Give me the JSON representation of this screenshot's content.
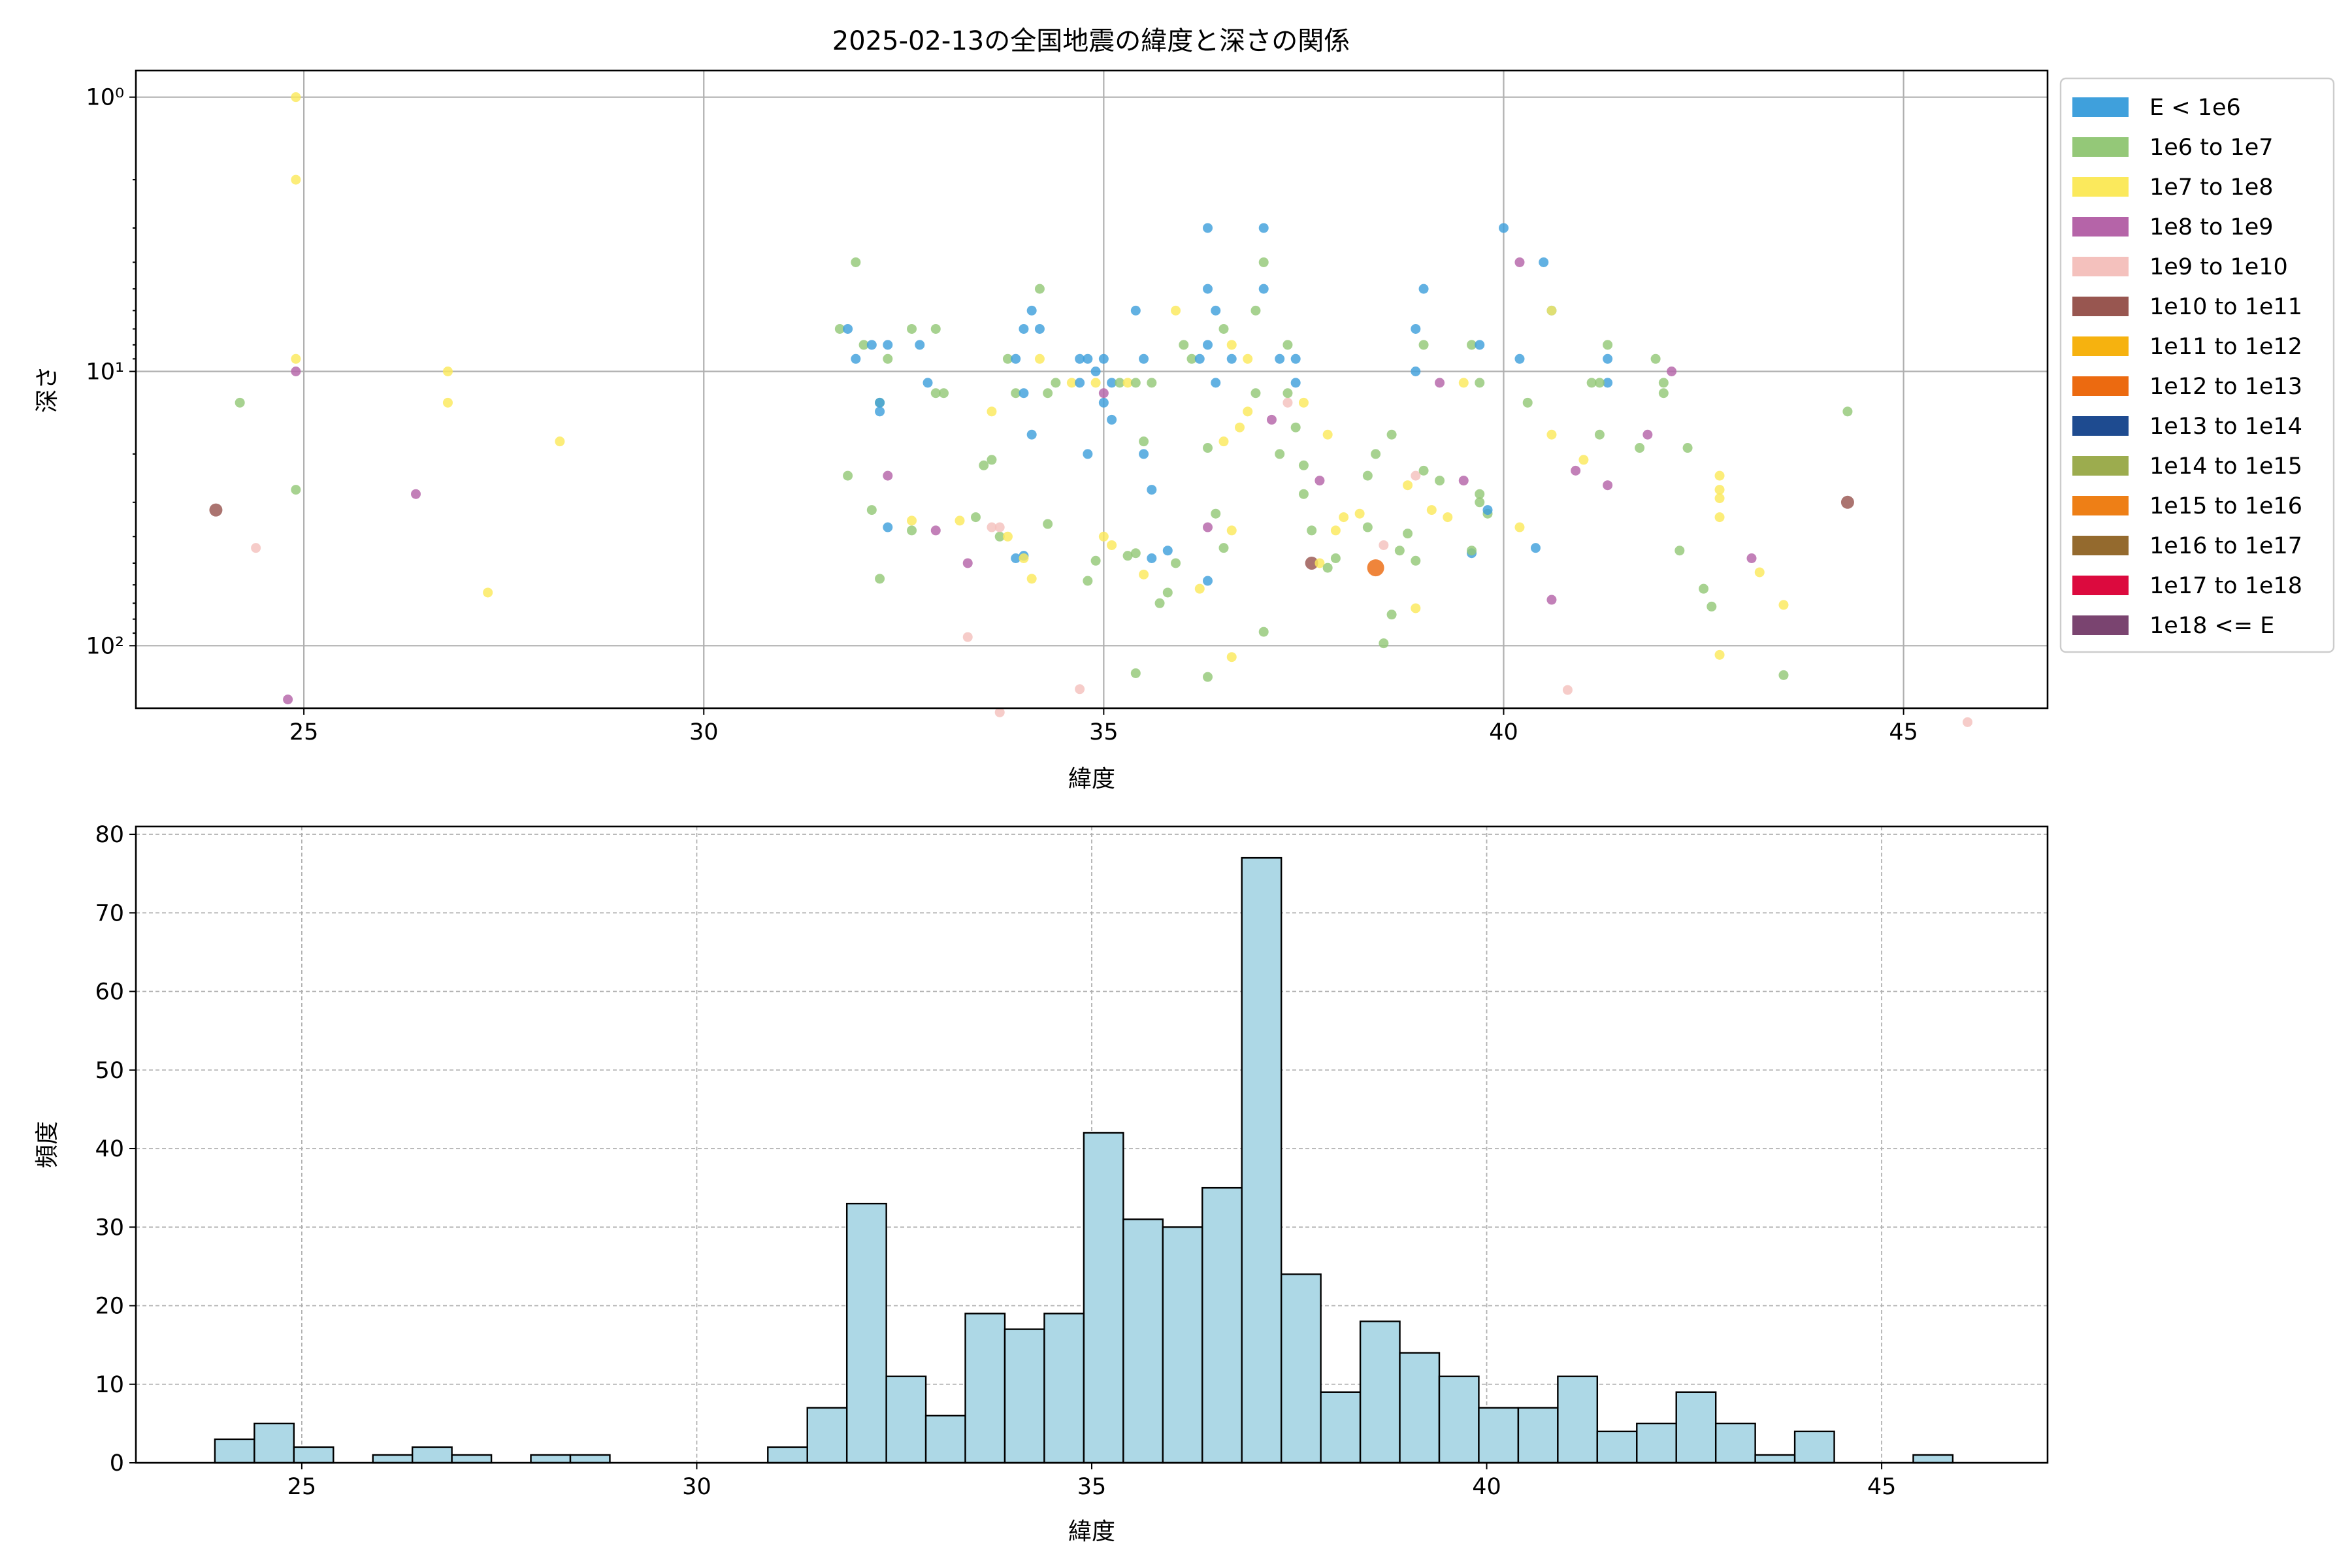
{
  "title": "2025-02-13の全国地震の緯度と深さの関係",
  "chart_data": [
    {
      "type": "scatter",
      "xlabel": "緯度",
      "ylabel": "深さ",
      "xlim": [
        22.9,
        46.8
      ],
      "ylim": [
        0.8,
        169
      ],
      "y_inverted": true,
      "y_scale": "log",
      "x_ticks": [
        25,
        30,
        35,
        40,
        45
      ],
      "y_ticks": [
        {
          "value": 1,
          "label": "10⁰"
        },
        {
          "value": 10,
          "label": "10¹"
        },
        {
          "value": 100,
          "label": "10²"
        }
      ],
      "grid": true,
      "legend_position": "right",
      "legend": [
        {
          "label": "E < 1e6",
          "color": "#3fa0dc"
        },
        {
          "label": "1e6 to 1e7",
          "color": "#94c878"
        },
        {
          "label": "1e7 to 1e8",
          "color": "#fbe95c"
        },
        {
          "label": "1e8 to 1e9",
          "color": "#b564a8"
        },
        {
          "label": "1e9 to 1e10",
          "color": "#f4c1bd"
        },
        {
          "label": "1e10 to 1e11",
          "color": "#985650"
        },
        {
          "label": "1e11 to 1e12",
          "color": "#f6b20f"
        },
        {
          "label": "1e12 to 1e13",
          "color": "#ec6a10"
        },
        {
          "label": "1e13 to 1e14",
          "color": "#1e4b90"
        },
        {
          "label": "1e14 to 1e15",
          "color": "#9cac4e"
        },
        {
          "label": "1e15 to 1e16",
          "color": "#ee7f16"
        },
        {
          "label": "1e16 to 1e17",
          "color": "#946a2e"
        },
        {
          "label": "1e17 to 1e18",
          "color": "#dc0a3e"
        },
        {
          "label": "1e18 <= E",
          "color": "#7a4470"
        }
      ],
      "points": [
        [
          24.2,
          13,
          1
        ],
        [
          24.9,
          1,
          2
        ],
        [
          24.9,
          2,
          2
        ],
        [
          24.9,
          9,
          2
        ],
        [
          24.9,
          10,
          3
        ],
        [
          24.9,
          27,
          1
        ],
        [
          23.9,
          32,
          5
        ],
        [
          24.4,
          44,
          4
        ],
        [
          24.8,
          157,
          3
        ],
        [
          26.8,
          10,
          2
        ],
        [
          26.8,
          13,
          2
        ],
        [
          26.4,
          28,
          3
        ],
        [
          27.3,
          64,
          2
        ],
        [
          28.2,
          18,
          2
        ],
        [
          31.7,
          7,
          1
        ],
        [
          31.8,
          7,
          0
        ],
        [
          31.9,
          4,
          1
        ],
        [
          31.9,
          9,
          0
        ],
        [
          32.0,
          8,
          1
        ],
        [
          32.1,
          8,
          0
        ],
        [
          32.2,
          13,
          1
        ],
        [
          32.2,
          13,
          0
        ],
        [
          32.2,
          14,
          0
        ],
        [
          32.1,
          32,
          1
        ],
        [
          31.8,
          24,
          1
        ],
        [
          32.3,
          24,
          3
        ],
        [
          32.2,
          57,
          1
        ],
        [
          32.3,
          37,
          0
        ],
        [
          32.3,
          8,
          0
        ],
        [
          32.3,
          9,
          1
        ],
        [
          32.6,
          7,
          1
        ],
        [
          32.7,
          8,
          0
        ],
        [
          32.6,
          38,
          1
        ],
        [
          32.6,
          35,
          2
        ],
        [
          32.8,
          11,
          0
        ],
        [
          32.9,
          7,
          1
        ],
        [
          32.9,
          12,
          1
        ],
        [
          32.9,
          38,
          3
        ],
        [
          33.0,
          12,
          1
        ],
        [
          33.2,
          35,
          2
        ],
        [
          33.3,
          50,
          3
        ],
        [
          33.4,
          34,
          1
        ],
        [
          33.5,
          22,
          1
        ],
        [
          33.6,
          14,
          2
        ],
        [
          33.6,
          37,
          4
        ],
        [
          33.7,
          40,
          1
        ],
        [
          33.3,
          93,
          4
        ],
        [
          33.6,
          21,
          1
        ],
        [
          33.8,
          9,
          1
        ],
        [
          33.9,
          12,
          1
        ],
        [
          33.9,
          9,
          0
        ],
        [
          34.0,
          7,
          0
        ],
        [
          34.0,
          12,
          0
        ],
        [
          34.1,
          6,
          0
        ],
        [
          34.1,
          17,
          0
        ],
        [
          34.2,
          9,
          2
        ],
        [
          34.2,
          7,
          0
        ],
        [
          34.3,
          12,
          1
        ],
        [
          34.4,
          11,
          1
        ],
        [
          34.0,
          47,
          0
        ],
        [
          33.9,
          48,
          0
        ],
        [
          34.1,
          57,
          2
        ],
        [
          34.3,
          36,
          1
        ],
        [
          34.2,
          5,
          1
        ],
        [
          33.7,
          37,
          4
        ],
        [
          33.8,
          40,
          2
        ],
        [
          34.0,
          48,
          2
        ],
        [
          33.7,
          175,
          4
        ],
        [
          34.6,
          11,
          2
        ],
        [
          34.7,
          9,
          0
        ],
        [
          34.7,
          11,
          0
        ],
        [
          34.8,
          20,
          0
        ],
        [
          34.8,
          9,
          0
        ],
        [
          34.9,
          10,
          0
        ],
        [
          34.9,
          11,
          2
        ],
        [
          35.0,
          13,
          0
        ],
        [
          35.0,
          9,
          0
        ],
        [
          35.1,
          15,
          0
        ],
        [
          35.1,
          11,
          0
        ],
        [
          34.8,
          58,
          1
        ],
        [
          34.9,
          49,
          1
        ],
        [
          35.0,
          40,
          2
        ],
        [
          35.1,
          43,
          2
        ],
        [
          34.7,
          144,
          4
        ],
        [
          35.0,
          12,
          3
        ],
        [
          35.2,
          11,
          1
        ],
        [
          35.3,
          11,
          2
        ],
        [
          35.4,
          6,
          0
        ],
        [
          35.4,
          11,
          1
        ],
        [
          35.5,
          9,
          0
        ],
        [
          35.5,
          20,
          0
        ],
        [
          35.6,
          11,
          1
        ],
        [
          35.6,
          27,
          0
        ],
        [
          35.5,
          18,
          1
        ],
        [
          35.4,
          46,
          1
        ],
        [
          35.3,
          47,
          1
        ],
        [
          35.5,
          55,
          2
        ],
        [
          35.6,
          48,
          0
        ],
        [
          35.7,
          70,
          1
        ],
        [
          35.8,
          64,
          1
        ],
        [
          35.9,
          50,
          1
        ],
        [
          35.4,
          126,
          1
        ],
        [
          35.8,
          45,
          0
        ],
        [
          35.9,
          6,
          2
        ],
        [
          36.0,
          8,
          1
        ],
        [
          36.1,
          9,
          1
        ],
        [
          36.2,
          9,
          0
        ],
        [
          36.3,
          8,
          0
        ],
        [
          36.4,
          6,
          0
        ],
        [
          36.3,
          5,
          0
        ],
        [
          36.5,
          7,
          1
        ],
        [
          36.4,
          11,
          0
        ],
        [
          36.6,
          9,
          0
        ],
        [
          36.6,
          8,
          2
        ],
        [
          36.8,
          9,
          2
        ],
        [
          36.9,
          12,
          1
        ],
        [
          37.0,
          5,
          0
        ],
        [
          36.3,
          3,
          0
        ],
        [
          37.0,
          3,
          0
        ],
        [
          37.0,
          4,
          1
        ],
        [
          36.9,
          6,
          1
        ],
        [
          36.3,
          19,
          1
        ],
        [
          36.5,
          18,
          2
        ],
        [
          36.4,
          33,
          1
        ],
        [
          36.3,
          37,
          3
        ],
        [
          36.7,
          16,
          2
        ],
        [
          36.8,
          14,
          2
        ],
        [
          36.3,
          58,
          0
        ],
        [
          36.2,
          62,
          2
        ],
        [
          36.5,
          44,
          1
        ],
        [
          36.6,
          38,
          2
        ],
        [
          36.3,
          130,
          1
        ],
        [
          36.6,
          110,
          2
        ],
        [
          37.0,
          89,
          1
        ],
        [
          37.2,
          20,
          1
        ],
        [
          37.1,
          15,
          3
        ],
        [
          37.2,
          9,
          0
        ],
        [
          37.3,
          8,
          1
        ],
        [
          37.4,
          9,
          0
        ],
        [
          37.3,
          12,
          1
        ],
        [
          37.5,
          13,
          2
        ],
        [
          37.4,
          11,
          0
        ],
        [
          37.3,
          13,
          4
        ],
        [
          37.4,
          16,
          1
        ],
        [
          37.5,
          22,
          1
        ],
        [
          37.5,
          28,
          1
        ],
        [
          37.6,
          38,
          1
        ],
        [
          37.6,
          50,
          5
        ],
        [
          37.7,
          50,
          2
        ],
        [
          37.9,
          38,
          2
        ],
        [
          37.8,
          52,
          1
        ],
        [
          37.9,
          48,
          1
        ],
        [
          37.7,
          25,
          3
        ],
        [
          37.8,
          17,
          2
        ],
        [
          38.0,
          34,
          2
        ],
        [
          38.2,
          33,
          2
        ],
        [
          38.3,
          37,
          1
        ],
        [
          38.4,
          52,
          7
        ],
        [
          38.5,
          43,
          4
        ],
        [
          38.6,
          77,
          1
        ],
        [
          38.7,
          45,
          1
        ],
        [
          38.5,
          98,
          1
        ],
        [
          38.4,
          20,
          1
        ],
        [
          38.3,
          24,
          1
        ],
        [
          38.6,
          17,
          1
        ],
        [
          38.8,
          39,
          1
        ],
        [
          38.9,
          49,
          1
        ],
        [
          38.9,
          73,
          2
        ],
        [
          38.9,
          10,
          0
        ],
        [
          38.9,
          7,
          0
        ],
        [
          39.0,
          5,
          0
        ],
        [
          39.0,
          8,
          1
        ],
        [
          39.2,
          11,
          3
        ],
        [
          38.9,
          24,
          4
        ],
        [
          38.8,
          26,
          2
        ],
        [
          39.0,
          23,
          1
        ],
        [
          39.1,
          32,
          2
        ],
        [
          39.2,
          25,
          1
        ],
        [
          39.3,
          34,
          2
        ],
        [
          39.5,
          25,
          3
        ],
        [
          39.6,
          8,
          1
        ],
        [
          39.7,
          8,
          0
        ],
        [
          39.7,
          11,
          1
        ],
        [
          39.7,
          28,
          1
        ],
        [
          39.8,
          33,
          1
        ],
        [
          39.6,
          46,
          0
        ],
        [
          39.8,
          32,
          0
        ],
        [
          39.5,
          11,
          2
        ],
        [
          39.7,
          30,
          1
        ],
        [
          39.6,
          45,
          1
        ],
        [
          40.0,
          3,
          0
        ],
        [
          40.2,
          4,
          3
        ],
        [
          40.2,
          9,
          0
        ],
        [
          40.3,
          13,
          1
        ],
        [
          40.2,
          37,
          2
        ],
        [
          40.4,
          44,
          0
        ],
        [
          40.5,
          4,
          0
        ],
        [
          40.6,
          6,
          0
        ],
        [
          40.6,
          6,
          2
        ],
        [
          40.6,
          17,
          2
        ],
        [
          40.6,
          68,
          3
        ],
        [
          40.9,
          23,
          3
        ],
        [
          41.0,
          21,
          2
        ],
        [
          40.8,
          145,
          4
        ],
        [
          41.1,
          11,
          1
        ],
        [
          41.2,
          17,
          1
        ],
        [
          41.3,
          8,
          1
        ],
        [
          41.3,
          9,
          0
        ],
        [
          41.3,
          11,
          0
        ],
        [
          41.3,
          26,
          3
        ],
        [
          41.2,
          11,
          1
        ],
        [
          41.7,
          19,
          1
        ],
        [
          41.9,
          9,
          1
        ],
        [
          42.0,
          11,
          1
        ],
        [
          42.0,
          12,
          1
        ],
        [
          42.1,
          10,
          3
        ],
        [
          41.8,
          17,
          3
        ],
        [
          42.2,
          45,
          1
        ],
        [
          42.3,
          19,
          1
        ],
        [
          42.5,
          62,
          1
        ],
        [
          42.6,
          72,
          1
        ],
        [
          42.7,
          24,
          2
        ],
        [
          42.7,
          29,
          2
        ],
        [
          42.7,
          34,
          2
        ],
        [
          42.7,
          27,
          2
        ],
        [
          42.7,
          108,
          2
        ],
        [
          43.1,
          48,
          3
        ],
        [
          43.2,
          54,
          2
        ],
        [
          43.5,
          71,
          2
        ],
        [
          43.5,
          128,
          1
        ],
        [
          44.3,
          30,
          5
        ],
        [
          44.3,
          14,
          1
        ],
        [
          45.8,
          190,
          4
        ]
      ]
    },
    {
      "type": "bar",
      "xlabel": "緯度",
      "ylabel": "頻度",
      "xlim": [
        22.9,
        47.1
      ],
      "ylim": [
        0,
        81
      ],
      "x_ticks": [
        25,
        30,
        35,
        40,
        45
      ],
      "y_ticks": [
        0,
        10,
        20,
        30,
        40,
        50,
        60,
        70,
        80
      ],
      "grid": true,
      "bar_color": "#add8e6",
      "bin_start": 23.9,
      "bin_width": 0.5,
      "values": [
        3,
        5,
        2,
        0,
        1,
        2,
        1,
        0,
        1,
        1,
        0,
        0,
        0,
        0,
        2,
        7,
        33,
        11,
        6,
        19,
        17,
        19,
        42,
        31,
        30,
        35,
        77,
        24,
        9,
        18,
        14,
        11,
        7,
        7,
        11,
        4,
        5,
        9,
        5,
        1,
        4,
        0,
        0,
        1
      ]
    }
  ]
}
